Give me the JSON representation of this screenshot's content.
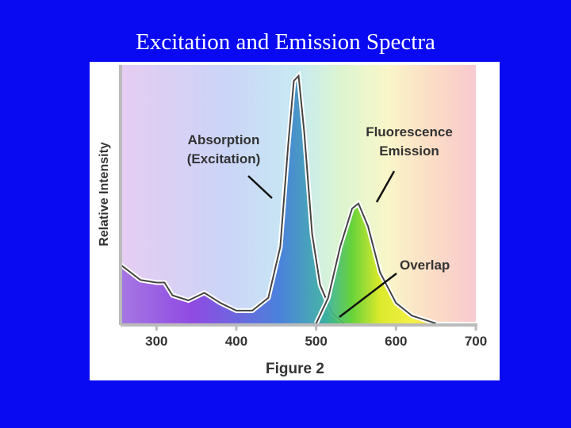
{
  "chart_data": {
    "type": "area",
    "title": "Excitation and Emission Spectra",
    "xlabel": "Figure 2",
    "ylabel": "Relative Intensity",
    "xlim": [
      250,
      700
    ],
    "ylim": [
      0,
      1
    ],
    "xticks": [
      300,
      400,
      500,
      600,
      700
    ],
    "series": [
      {
        "name": "Absorption (Excitation)",
        "color": "#444444",
        "x": [
          255,
          280,
          300,
          310,
          320,
          340,
          360,
          380,
          400,
          420,
          440,
          455,
          465,
          472,
          478,
          485,
          495,
          505,
          520,
          535
        ],
        "values": [
          0.23,
          0.17,
          0.16,
          0.16,
          0.11,
          0.09,
          0.12,
          0.08,
          0.05,
          0.05,
          0.1,
          0.3,
          0.7,
          0.95,
          0.97,
          0.75,
          0.35,
          0.15,
          0.04,
          0.0
        ]
      },
      {
        "name": "Fluorescence Emission",
        "color": "#444444",
        "x": [
          500,
          515,
          530,
          545,
          553,
          565,
          580,
          600,
          620,
          640,
          650
        ],
        "values": [
          0.0,
          0.1,
          0.3,
          0.45,
          0.47,
          0.38,
          0.2,
          0.08,
          0.03,
          0.01,
          0.0
        ]
      }
    ],
    "annotations": [
      {
        "lines": [
          "Absorption",
          "(Excitation)"
        ]
      },
      {
        "lines": [
          "Fluorescence",
          "Emission"
        ]
      },
      {
        "lines": [
          "Overlap"
        ]
      }
    ]
  }
}
